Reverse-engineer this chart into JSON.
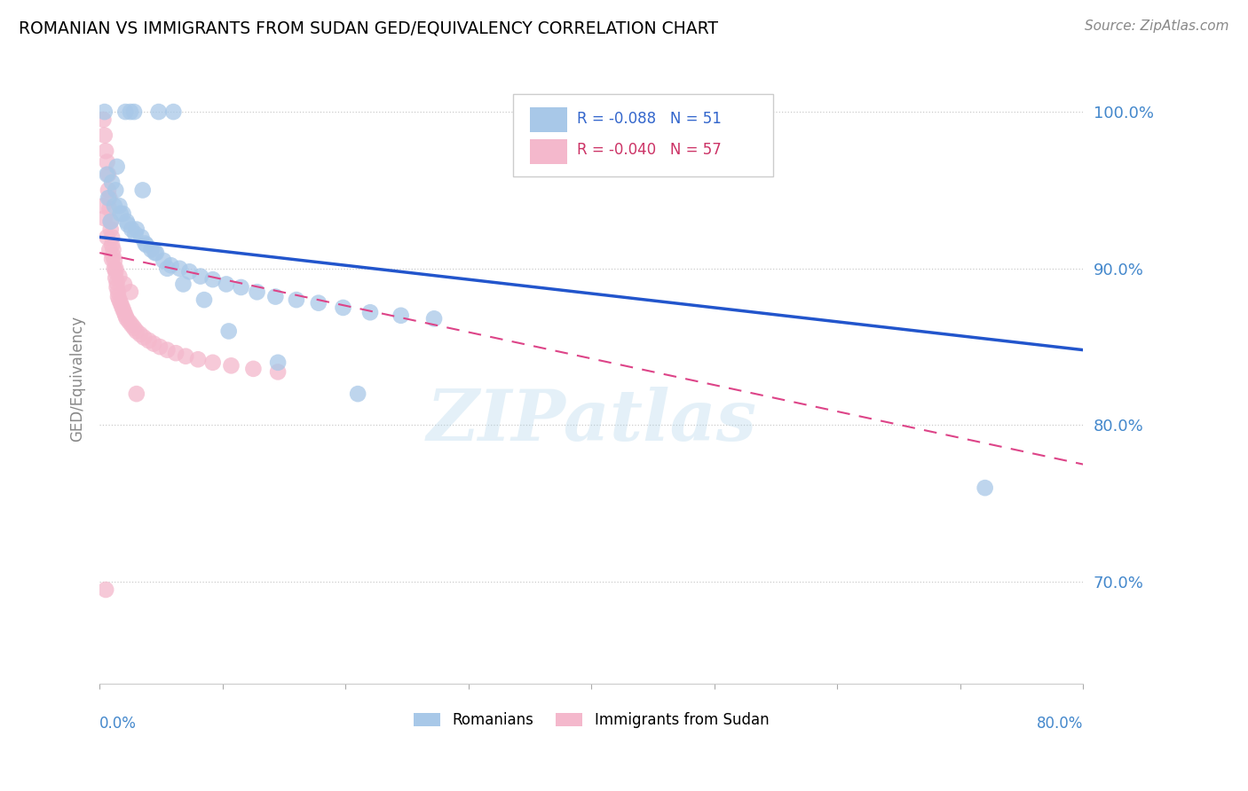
{
  "title": "ROMANIAN VS IMMIGRANTS FROM SUDAN GED/EQUIVALENCY CORRELATION CHART",
  "source": "Source: ZipAtlas.com",
  "ylabel": "GED/Equivalency",
  "xmin": 0.0,
  "xmax": 0.8,
  "ymin": 0.635,
  "ymax": 1.025,
  "blue_color": "#a8c8e8",
  "pink_color": "#f4b8cc",
  "blue_line_color": "#2255cc",
  "pink_line_color": "#dd4488",
  "legend_blue_r": "-0.088",
  "legend_blue_n": "51",
  "legend_pink_r": "-0.040",
  "legend_pink_n": "57",
  "legend_label_blue": "Romanians",
  "legend_label_pink": "Immigrants from Sudan",
  "watermark": "ZIPatlas",
  "blue_trend_x0": 0.0,
  "blue_trend_y0": 0.92,
  "blue_trend_x1": 0.8,
  "blue_trend_y1": 0.848,
  "pink_trend_x0": 0.0,
  "pink_trend_y0": 0.91,
  "pink_trend_x1": 0.8,
  "pink_trend_y1": 0.775,
  "blue_points_x": [
    0.004,
    0.021,
    0.025,
    0.028,
    0.048,
    0.06,
    0.006,
    0.01,
    0.013,
    0.016,
    0.019,
    0.022,
    0.026,
    0.03,
    0.034,
    0.038,
    0.042,
    0.046,
    0.052,
    0.058,
    0.065,
    0.073,
    0.082,
    0.092,
    0.103,
    0.115,
    0.128,
    0.143,
    0.16,
    0.178,
    0.198,
    0.22,
    0.245,
    0.272,
    0.035,
    0.014,
    0.009,
    0.007,
    0.012,
    0.017,
    0.023,
    0.029,
    0.037,
    0.045,
    0.055,
    0.068,
    0.085,
    0.105,
    0.145,
    0.21,
    0.72
  ],
  "blue_points_y": [
    1.0,
    1.0,
    1.0,
    1.0,
    1.0,
    1.0,
    0.96,
    0.955,
    0.95,
    0.94,
    0.935,
    0.93,
    0.925,
    0.925,
    0.92,
    0.915,
    0.912,
    0.91,
    0.905,
    0.902,
    0.9,
    0.898,
    0.895,
    0.893,
    0.89,
    0.888,
    0.885,
    0.882,
    0.88,
    0.878,
    0.875,
    0.872,
    0.87,
    0.868,
    0.95,
    0.965,
    0.93,
    0.945,
    0.94,
    0.935,
    0.928,
    0.922,
    0.916,
    0.91,
    0.9,
    0.89,
    0.88,
    0.86,
    0.84,
    0.82,
    0.76
  ],
  "pink_points_x": [
    0.003,
    0.004,
    0.005,
    0.006,
    0.007,
    0.007,
    0.008,
    0.008,
    0.009,
    0.009,
    0.01,
    0.01,
    0.011,
    0.011,
    0.012,
    0.012,
    0.013,
    0.013,
    0.014,
    0.014,
    0.015,
    0.015,
    0.016,
    0.017,
    0.018,
    0.019,
    0.02,
    0.021,
    0.022,
    0.024,
    0.026,
    0.028,
    0.03,
    0.033,
    0.036,
    0.04,
    0.044,
    0.049,
    0.055,
    0.062,
    0.07,
    0.08,
    0.092,
    0.107,
    0.125,
    0.145,
    0.03,
    0.003,
    0.004,
    0.006,
    0.008,
    0.01,
    0.013,
    0.016,
    0.02,
    0.025,
    0.005
  ],
  "pink_points_y": [
    0.995,
    0.985,
    0.975,
    0.968,
    0.96,
    0.95,
    0.945,
    0.938,
    0.93,
    0.925,
    0.92,
    0.915,
    0.912,
    0.908,
    0.905,
    0.9,
    0.898,
    0.894,
    0.891,
    0.888,
    0.885,
    0.882,
    0.88,
    0.878,
    0.876,
    0.874,
    0.872,
    0.87,
    0.868,
    0.866,
    0.864,
    0.862,
    0.86,
    0.858,
    0.856,
    0.854,
    0.852,
    0.85,
    0.848,
    0.846,
    0.844,
    0.842,
    0.84,
    0.838,
    0.836,
    0.834,
    0.82,
    0.94,
    0.932,
    0.92,
    0.912,
    0.906,
    0.9,
    0.895,
    0.89,
    0.885,
    0.695
  ]
}
